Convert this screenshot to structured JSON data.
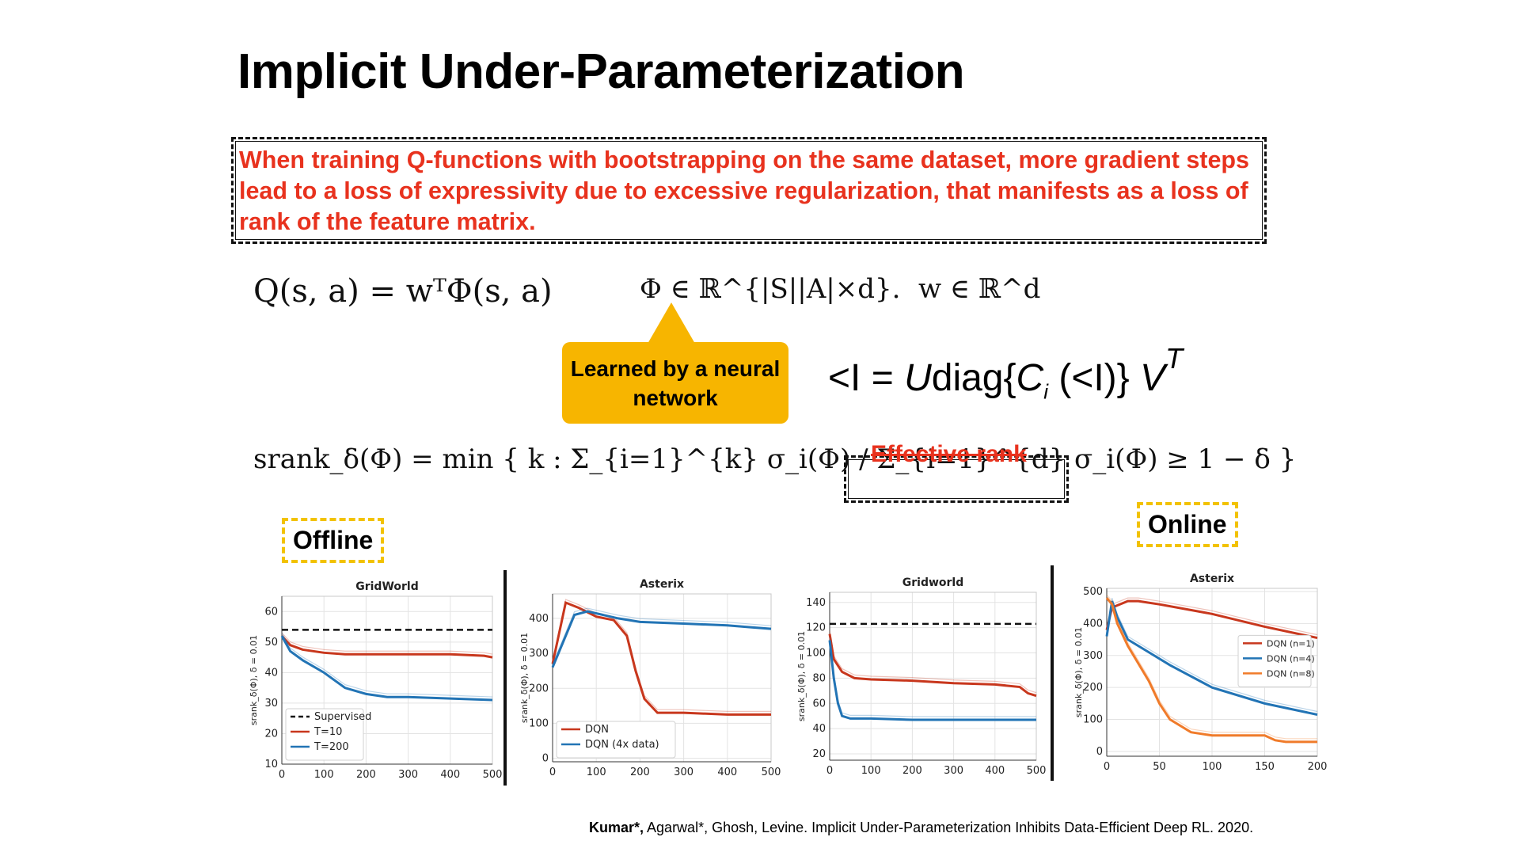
{
  "slide": {
    "title": "Implicit Under-Parameterization",
    "callout": "When training Q-functions with bootstrapping on the same dataset, more gradient steps lead to a loss of expressivity due to excessive regularization, that manifests as a loss of rank of the feature matrix.",
    "equations": {
      "q_function": "Q(s, a) = wᵀΦ(s, a)",
      "phi_space": "Φ ∈ ℝ^{|S||A|×d}.",
      "w_space": "w ∈ ℝ^d",
      "svd_lhs": "<I =",
      "svd_U": "U",
      "svd_diag": "diag{",
      "svd_C": "C",
      "svd_i": "i",
      "svd_arg": "(<I)}",
      "svd_V": "V",
      "svd_T": "T",
      "srank": "srank_δ(Φ) = min { k : Σ_{i=1}^{k} σ_i(Φ) / Σ_{i=1}^{d} σ_i(Φ) ≥ 1 − δ }"
    },
    "note": "Learned by a neural network",
    "effective_rank_label": "Effective rank",
    "offline_label": "Offline",
    "online_label": "Online",
    "citation_bold": "Kumar*,",
    "citation_rest": " Agarwal*, Ghosh, Levine. Implicit Under-Parameterization Inhibits Data-Efficient Deep RL. 2020."
  },
  "colors": {
    "red": "#c8371d",
    "blue": "#2274b5",
    "orange": "#f07b2a",
    "accent_red_text": "#e8321e",
    "note_bg": "#f7b500"
  },
  "chart_data": [
    {
      "type": "line",
      "title": "GridWorld",
      "ylabel": "srank_δ(Φ), δ = 0.01",
      "xlim": [
        0,
        500
      ],
      "ylim": [
        10,
        65
      ],
      "xticks": [
        0,
        100,
        200,
        300,
        400,
        500
      ],
      "yticks": [
        10,
        20,
        30,
        40,
        50,
        60
      ],
      "legend_position": "bottom-left",
      "series": [
        {
          "name": "Supervised",
          "color": "#111111",
          "dashed": true,
          "x": [
            0,
            500
          ],
          "y": [
            54,
            54
          ]
        },
        {
          "name": "T=10",
          "color": "#c8371d",
          "x": [
            0,
            20,
            50,
            100,
            150,
            200,
            300,
            400,
            480,
            500
          ],
          "y": [
            52,
            49,
            47.5,
            46.5,
            46,
            46,
            46,
            46,
            45.5,
            45
          ]
        },
        {
          "name": "T=200",
          "color": "#2274b5",
          "x": [
            0,
            20,
            50,
            100,
            130,
            150,
            200,
            250,
            300,
            400,
            500
          ],
          "y": [
            52,
            47,
            44,
            40,
            37,
            35,
            33,
            32,
            32,
            31.5,
            31
          ]
        }
      ]
    },
    {
      "type": "line",
      "title": "Asterix",
      "ylabel": "srank_δ(Φ), δ = 0.01",
      "xlim": [
        0,
        500
      ],
      "ylim": [
        -10,
        470
      ],
      "xticks": [
        0,
        100,
        200,
        300,
        400,
        500
      ],
      "yticks": [
        0,
        100,
        200,
        300,
        400
      ],
      "legend_position": "bottom-left",
      "series": [
        {
          "name": "DQN",
          "color": "#c8371d",
          "x": [
            0,
            30,
            60,
            100,
            140,
            170,
            190,
            210,
            240,
            300,
            400,
            500
          ],
          "y": [
            270,
            445,
            430,
            405,
            395,
            350,
            250,
            170,
            130,
            130,
            125,
            125
          ]
        },
        {
          "name": "DQN (4x data)",
          "color": "#2274b5",
          "x": [
            0,
            50,
            80,
            150,
            200,
            300,
            400,
            450,
            500
          ],
          "y": [
            260,
            410,
            420,
            400,
            390,
            385,
            380,
            375,
            370
          ]
        }
      ]
    },
    {
      "type": "line",
      "title": "Gridworld",
      "ylabel": "srank_δ(Φ), δ = 0.01",
      "xlim": [
        0,
        500
      ],
      "ylim": [
        15,
        148
      ],
      "xticks": [
        0,
        100,
        200,
        300,
        400,
        500
      ],
      "yticks": [
        20,
        40,
        60,
        80,
        100,
        120,
        140
      ],
      "series": [
        {
          "color": "#111111",
          "dashed": true,
          "x": [
            0,
            500
          ],
          "y": [
            123,
            123
          ]
        },
        {
          "color": "#c8371d",
          "x": [
            0,
            10,
            30,
            60,
            100,
            200,
            300,
            400,
            460,
            480,
            500
          ],
          "y": [
            115,
            95,
            85,
            80,
            79,
            78,
            76,
            75,
            73,
            68,
            66
          ]
        },
        {
          "color": "#2274b5",
          "x": [
            0,
            10,
            20,
            30,
            50,
            80,
            100,
            200,
            300,
            400,
            500
          ],
          "y": [
            110,
            80,
            60,
            50,
            48,
            48,
            48,
            47,
            47,
            47,
            47
          ]
        }
      ]
    },
    {
      "type": "line",
      "title": "Asterix",
      "ylabel": "srank_δ(Φ), δ = 0.01",
      "xlim": [
        0,
        200
      ],
      "ylim": [
        -15,
        510
      ],
      "xticks": [
        0,
        50,
        100,
        150,
        200
      ],
      "yticks": [
        0,
        100,
        200,
        300,
        400,
        500
      ],
      "legend_position": "right",
      "series": [
        {
          "name": "DQN (n=1)",
          "color": "#c8371d",
          "x": [
            0,
            5,
            20,
            30,
            50,
            100,
            150,
            200
          ],
          "y": [
            380,
            450,
            470,
            470,
            460,
            430,
            390,
            355
          ]
        },
        {
          "name": "DQN (n=4)",
          "color": "#2274b5",
          "x": [
            0,
            5,
            10,
            20,
            40,
            60,
            100,
            150,
            200
          ],
          "y": [
            360,
            470,
            420,
            350,
            310,
            270,
            200,
            150,
            115
          ]
        },
        {
          "name": "DQN (n=8)",
          "color": "#f07b2a",
          "x": [
            0,
            5,
            10,
            20,
            40,
            50,
            60,
            80,
            100,
            150,
            160,
            170,
            200
          ],
          "y": [
            480,
            460,
            400,
            330,
            220,
            150,
            100,
            60,
            50,
            50,
            35,
            30,
            30
          ]
        }
      ]
    }
  ]
}
